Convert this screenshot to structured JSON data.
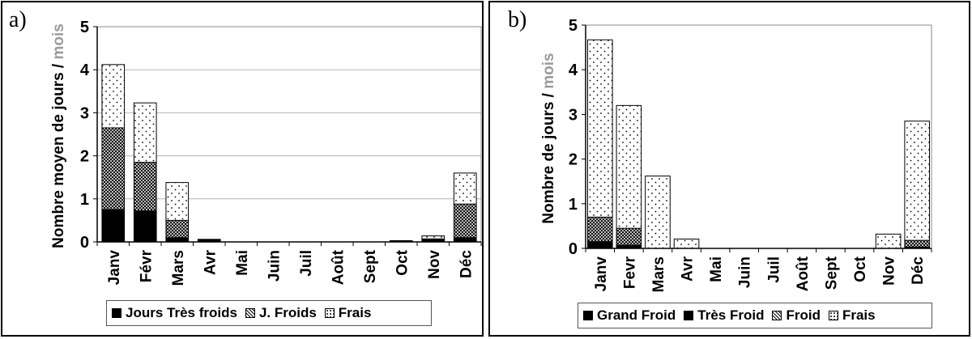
{
  "panels": [
    {
      "label": "a)",
      "legend": [
        "Jours Très froids",
        "J. Froids",
        "Frais"
      ],
      "chart_data": {
        "type": "bar",
        "stacked": true,
        "ylabel": "Nombre moyen de jours / mois",
        "ylabel_tail": "mois",
        "ylim": [
          0,
          5
        ],
        "yticks": [
          0,
          1,
          2,
          3,
          4,
          5
        ],
        "grid": true,
        "legend_position": "bottom",
        "categories": [
          "Janv",
          "Févr",
          "Mars",
          "Avr",
          "Mai",
          "Juin",
          "Juil",
          "Août",
          "Sept",
          "Oct",
          "Nov",
          "Déc"
        ],
        "series": [
          {
            "name": "Jours Très froids",
            "pattern": "solid",
            "values": [
              0.75,
              0.72,
              0.1,
              0.06,
              0,
              0,
              0,
              0,
              0,
              0.03,
              0.07,
              0.1
            ]
          },
          {
            "name": "J. Froids",
            "pattern": "cross",
            "values": [
              1.9,
              1.13,
              0.4,
              0,
              0,
              0,
              0,
              0,
              0,
              0,
              0,
              0.78
            ]
          },
          {
            "name": "Frais",
            "pattern": "dots",
            "values": [
              1.47,
              1.38,
              0.88,
              0,
              0,
              0,
              0,
              0,
              0,
              0,
              0.07,
              0.72
            ]
          }
        ]
      }
    },
    {
      "label": "b)",
      "legend": [
        "Grand Froid",
        "Très Froid",
        "Froid",
        "Frais"
      ],
      "chart_data": {
        "type": "bar",
        "stacked": true,
        "ylabel": "Nombre de jours / mois",
        "ylabel_tail": "mois",
        "ylim": [
          0,
          5
        ],
        "yticks": [
          0,
          1,
          2,
          3,
          4,
          5
        ],
        "grid": false,
        "legend_position": "bottom",
        "categories": [
          "Janv",
          "Fevr",
          "Mars",
          "Avr",
          "Mai",
          "Juin",
          "Juil",
          "Août",
          "Sept",
          "Oct",
          "Nov",
          "Déc"
        ],
        "series": [
          {
            "name": "Grand Froid",
            "pattern": "solid",
            "values": [
              0.05,
              0,
              0,
              0,
              0,
              0,
              0,
              0,
              0,
              0,
              0,
              0
            ]
          },
          {
            "name": "Très Froid",
            "pattern": "solid",
            "values": [
              0.1,
              0.07,
              0,
              0,
              0,
              0,
              0,
              0,
              0,
              0,
              0,
              0.03
            ]
          },
          {
            "name": "Froid",
            "pattern": "cross",
            "values": [
              0.55,
              0.38,
              0,
              0,
              0,
              0,
              0,
              0,
              0,
              0,
              0,
              0.15
            ]
          },
          {
            "name": "Frais",
            "pattern": "dots",
            "values": [
              3.97,
              2.75,
              1.62,
              0.21,
              0,
              0,
              0,
              0,
              0,
              0,
              0.32,
              2.67
            ]
          }
        ]
      }
    }
  ]
}
